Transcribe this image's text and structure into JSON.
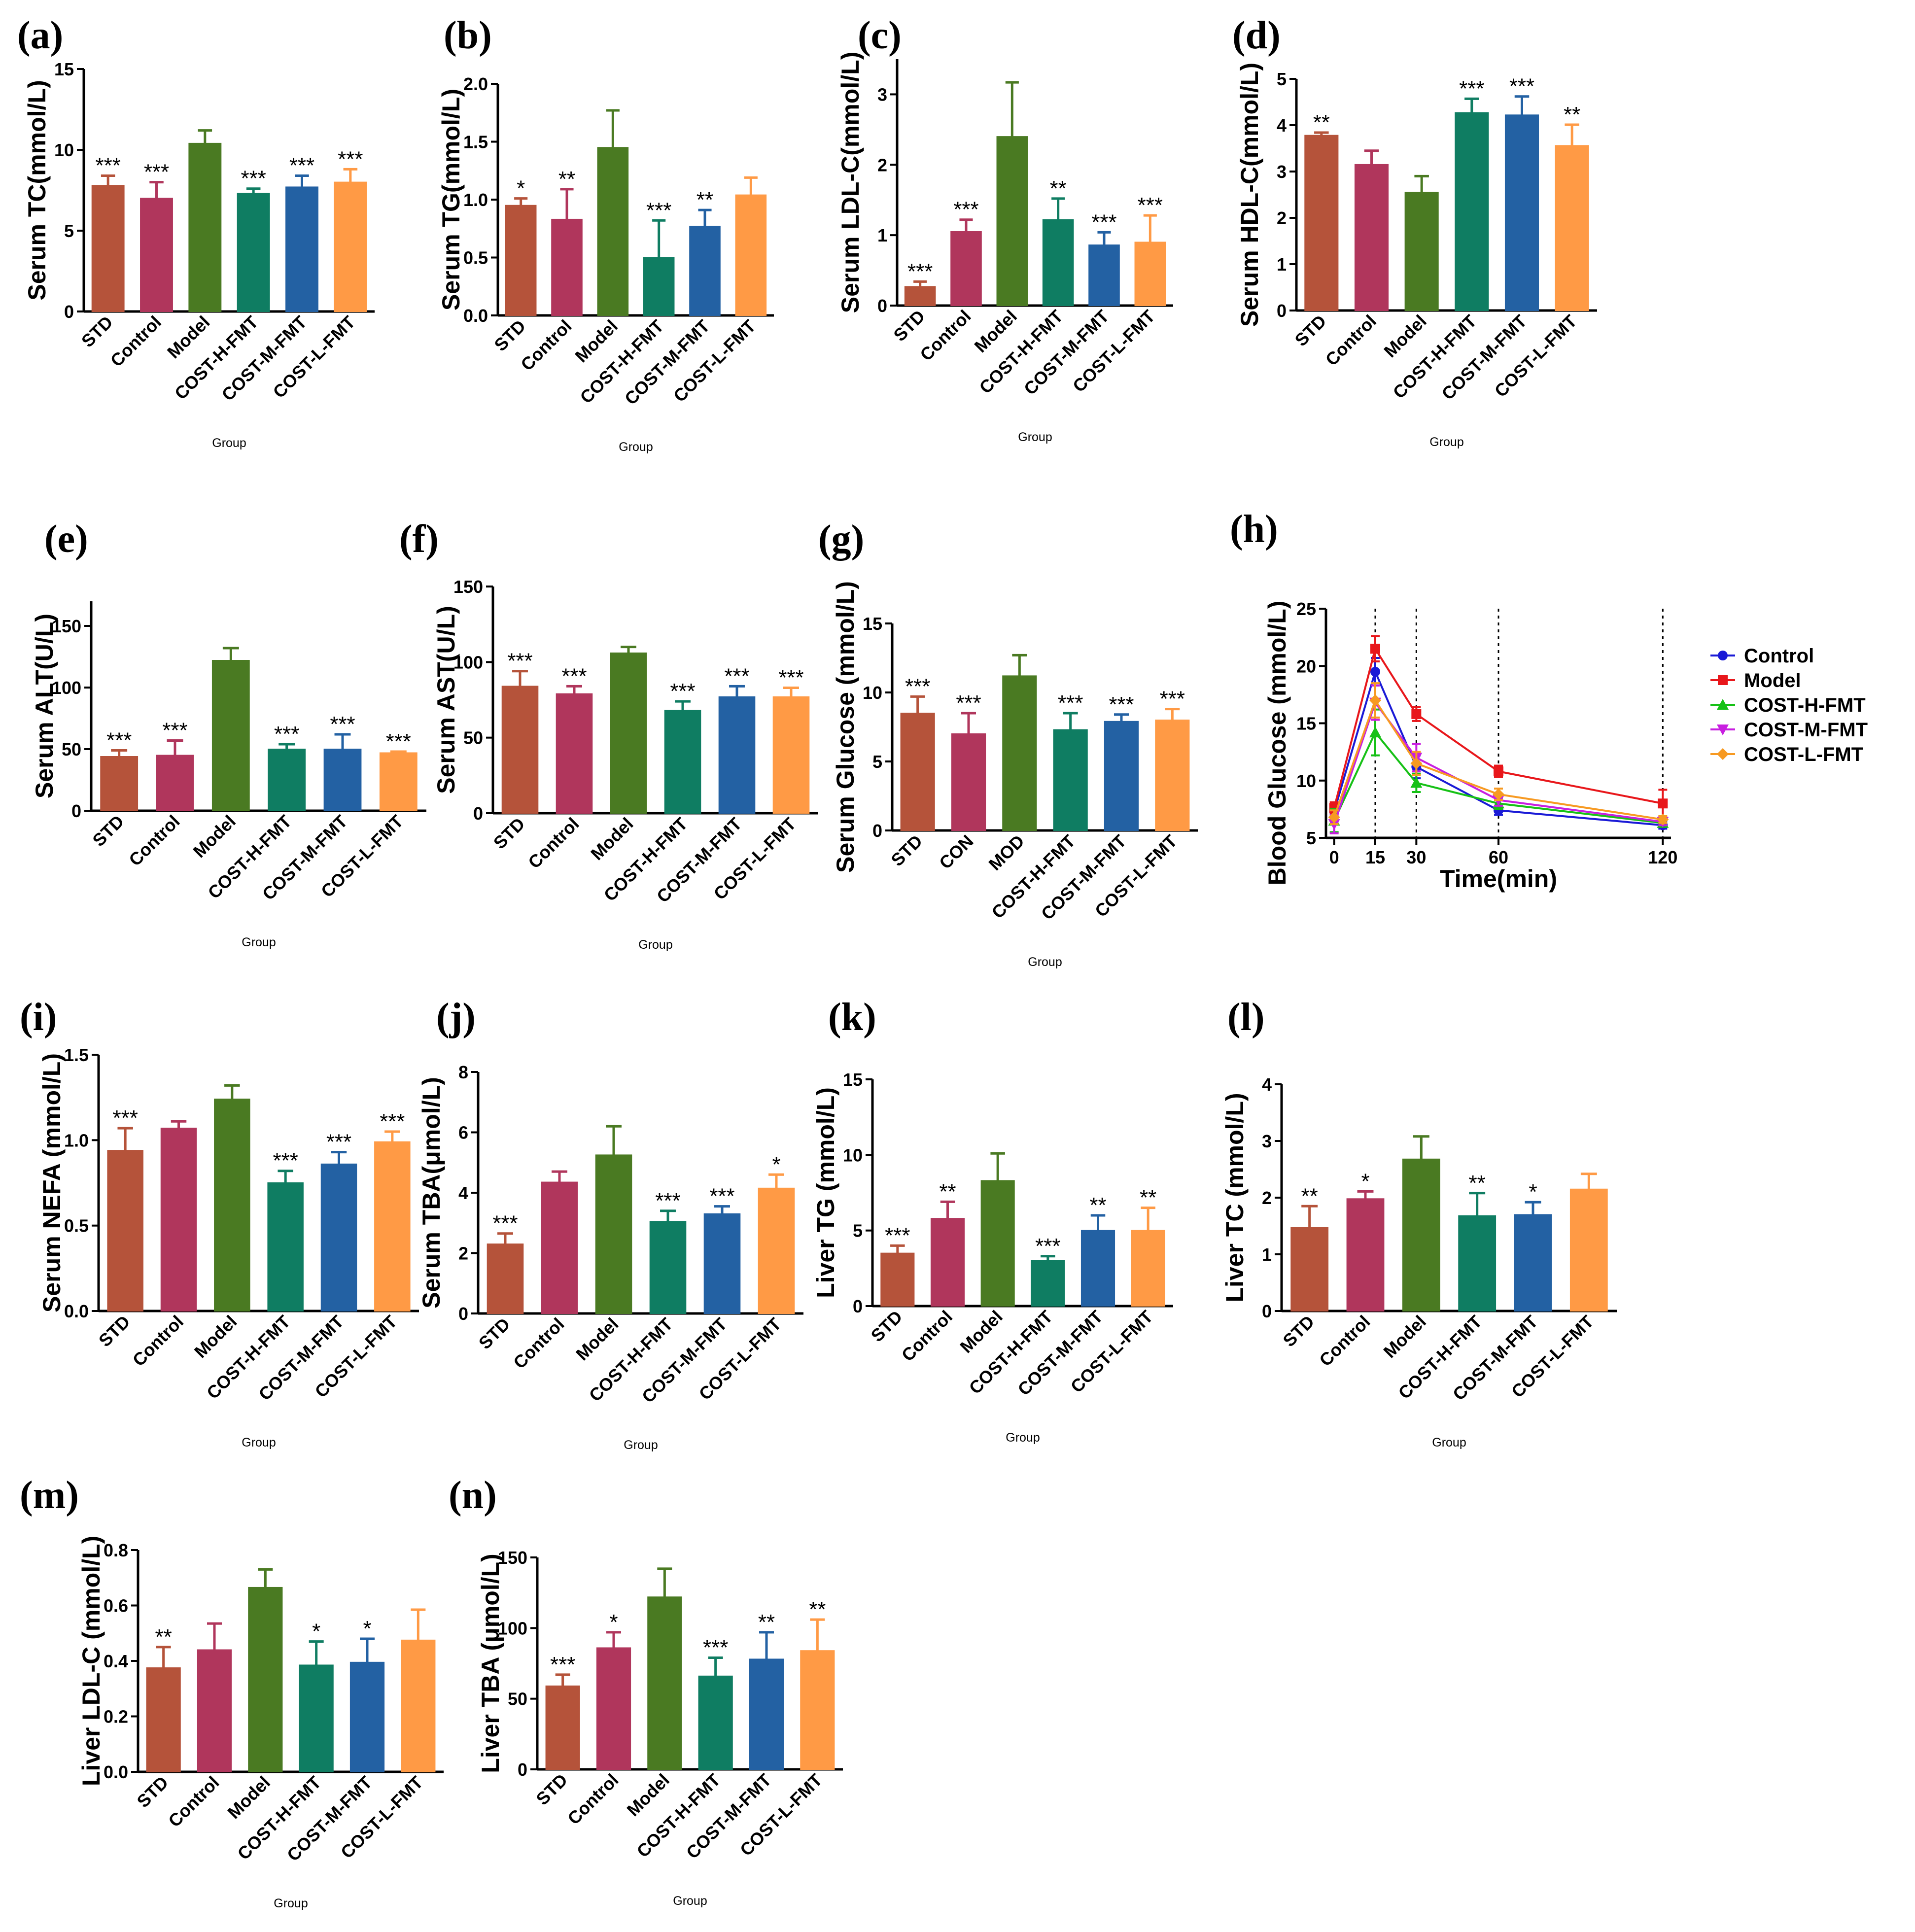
{
  "palette": {
    "STD": "#b5533a",
    "Control": "#b0365c",
    "Model": "#4a7a22",
    "COST-H-FMT": "#0f7d62",
    "COST-M-FMT": "#2361a3",
    "COST-L-FMT": "#ff9a45"
  },
  "line_colors": {
    "Control": "#1a1ad6",
    "Model": "#e8171b",
    "COST-H-FMT": "#16c116",
    "COST-M-FMT": "#c81ee0",
    "COST-L-FMT": "#f79a22"
  },
  "chart_data": [
    {
      "id": "a",
      "letter": "(a)",
      "type": "bar",
      "ylabel": "Serum TC(mmol/L)",
      "xlabel": "Group",
      "categories": [
        "STD",
        "Control",
        "Model",
        "COST-H-FMT",
        "COST-M-FMT",
        "COST-L-FMT"
      ],
      "values": [
        7.8,
        7.0,
        10.4,
        7.3,
        7.7,
        8.0
      ],
      "errors": [
        0.6,
        1.0,
        0.8,
        0.3,
        0.7,
        0.8
      ],
      "significance": [
        "***",
        "***",
        "",
        "***",
        "***",
        "***"
      ],
      "ylim": [
        0,
        15
      ],
      "ticks": [
        0,
        5,
        10,
        15
      ]
    },
    {
      "id": "b",
      "letter": "(b)",
      "type": "bar",
      "ylabel": "Serum TG(mmol/L)",
      "xlabel": "Group",
      "categories": [
        "STD",
        "Control",
        "Model",
        "COST-H-FMT",
        "COST-M-FMT",
        "COST-L-FMT"
      ],
      "values": [
        0.95,
        0.83,
        1.45,
        0.5,
        0.77,
        1.04
      ],
      "errors": [
        0.06,
        0.26,
        0.32,
        0.32,
        0.14,
        0.15
      ],
      "significance": [
        "*",
        "**",
        "",
        "***",
        "**",
        ""
      ],
      "ylim": [
        0,
        2.0
      ],
      "ticks": [
        "0.0",
        "0.5",
        "1.0",
        "1.5",
        "2.0"
      ]
    },
    {
      "id": "c",
      "letter": "(c)",
      "type": "bar",
      "ylabel": "Serum LDL-C(mmol/L)",
      "xlabel": "Group",
      "categories": [
        "STD",
        "Control",
        "Model",
        "COST-H-FMT",
        "COST-M-FMT",
        "COST-L-FMT"
      ],
      "values": [
        0.27,
        1.05,
        2.4,
        1.22,
        0.86,
        0.9
      ],
      "errors": [
        0.07,
        0.17,
        0.77,
        0.3,
        0.18,
        0.38
      ],
      "significance": [
        "***",
        "***",
        "",
        "**",
        "***",
        "***"
      ],
      "ylim": [
        0,
        3.5
      ],
      "ticks": [
        0,
        1,
        2,
        3
      ]
    },
    {
      "id": "d",
      "letter": "(d)",
      "type": "bar",
      "ylabel": "Serum HDL-C(mmol/L)",
      "xlabel": "Group",
      "categories": [
        "STD",
        "Control",
        "Model",
        "COST-H-FMT",
        "COST-M-FMT",
        "COST-L-FMT"
      ],
      "values": [
        3.78,
        3.15,
        2.55,
        4.27,
        4.22,
        3.56
      ],
      "errors": [
        0.06,
        0.3,
        0.35,
        0.3,
        0.4,
        0.45
      ],
      "significance": [
        "**",
        "",
        "",
        "***",
        "***",
        "**"
      ],
      "ylim": [
        0,
        5
      ],
      "ticks": [
        0,
        1,
        2,
        3,
        4,
        5
      ]
    },
    {
      "id": "e",
      "letter": "(e)",
      "type": "bar",
      "ylabel": "Serum ALT(U/L)",
      "xlabel": "Group",
      "categories": [
        "STD",
        "Control",
        "Model",
        "COST-H-FMT",
        "COST-M-FMT",
        "COST-L-FMT"
      ],
      "values": [
        44,
        45,
        122,
        50,
        50,
        47
      ],
      "errors": [
        5,
        12,
        10,
        4,
        12,
        1
      ],
      "significance": [
        "***",
        "***",
        "",
        "***",
        "***",
        "***"
      ],
      "ylim": [
        0,
        170
      ],
      "ticks": [
        0,
        50,
        100,
        150
      ]
    },
    {
      "id": "f",
      "letter": "(f)",
      "type": "bar",
      "ylabel": "Serum AST(U/L)",
      "xlabel": "Group",
      "categories": [
        "STD",
        "Control",
        "Model",
        "COST-H-FMT",
        "COST-M-FMT",
        "COST-L-FMT"
      ],
      "values": [
        84,
        79,
        106,
        68,
        77,
        77
      ],
      "errors": [
        10,
        5,
        4,
        6,
        7,
        6
      ],
      "significance": [
        "***",
        "***",
        "",
        "***",
        "***",
        "***"
      ],
      "ylim": [
        0,
        150
      ],
      "ticks": [
        0,
        50,
        100,
        150
      ]
    },
    {
      "id": "g",
      "letter": "(g)",
      "type": "bar",
      "ylabel": "Serum Glucose (mmol/L)",
      "xlabel": "Group",
      "categories": [
        "STD",
        "CON",
        "MOD",
        "COST-H-FMT",
        "COST-M-FMT",
        "COST-L-FMT"
      ],
      "values": [
        8.5,
        7.0,
        11.2,
        7.3,
        7.9,
        8.0
      ],
      "errors": [
        1.2,
        1.5,
        1.5,
        1.2,
        0.5,
        0.8
      ],
      "significance": [
        "***",
        "***",
        "",
        "***",
        "***",
        "***"
      ],
      "ylim": [
        0,
        15
      ],
      "ticks": [
        0,
        5,
        10,
        15
      ]
    },
    {
      "id": "i",
      "letter": "(i)",
      "type": "bar",
      "ylabel": "Serum NEFA (mmol/L)",
      "xlabel": "Group",
      "categories": [
        "STD",
        "Control",
        "Model",
        "COST-H-FMT",
        "COST-M-FMT",
        "COST-L-FMT"
      ],
      "values": [
        0.94,
        1.07,
        1.24,
        0.75,
        0.86,
        0.99
      ],
      "errors": [
        0.13,
        0.04,
        0.08,
        0.07,
        0.07,
        0.06
      ],
      "significance": [
        "***",
        "",
        "",
        "***",
        "***",
        "***"
      ],
      "ylim": [
        0,
        1.5
      ],
      "ticks": [
        "0.0",
        "0.5",
        "1.0",
        "1.5"
      ]
    },
    {
      "id": "j",
      "letter": "(j)",
      "type": "bar",
      "ylabel": "Serum TBA(μmol/L)",
      "xlabel": "Group",
      "categories": [
        "STD",
        "Control",
        "Model",
        "COST-H-FMT",
        "COST-M-FMT",
        "COST-L-FMT"
      ],
      "values": [
        2.3,
        4.35,
        5.25,
        3.05,
        3.3,
        4.15
      ],
      "errors": [
        0.35,
        0.35,
        0.95,
        0.35,
        0.25,
        0.45
      ],
      "significance": [
        "***",
        "",
        "",
        "***",
        "***",
        "*"
      ],
      "ylim": [
        0,
        8
      ],
      "ticks": [
        0,
        2,
        4,
        6,
        8
      ]
    },
    {
      "id": "k",
      "letter": "(k)",
      "type": "bar",
      "ylabel": "Liver TG (mmol/L)",
      "xlabel": "Group",
      "categories": [
        "STD",
        "Control",
        "Model",
        "COST-H-FMT",
        "COST-M-FMT",
        "COST-L-FMT"
      ],
      "values": [
        3.5,
        5.8,
        8.3,
        3.0,
        5.0,
        5.0
      ],
      "errors": [
        0.5,
        1.1,
        1.8,
        0.3,
        1.0,
        1.5
      ],
      "significance": [
        "***",
        "**",
        "",
        "***",
        "**",
        "**"
      ],
      "ylim": [
        0,
        15
      ],
      "ticks": [
        0,
        5,
        10,
        15
      ]
    },
    {
      "id": "l",
      "letter": "(l)",
      "type": "bar",
      "ylabel": "Liver TC (mmol/L)",
      "xlabel": "Group",
      "categories": [
        "STD",
        "Control",
        "Model",
        "COST-H-FMT",
        "COST-M-FMT",
        "COST-L-FMT"
      ],
      "values": [
        1.47,
        1.98,
        2.68,
        1.68,
        1.7,
        2.15
      ],
      "errors": [
        0.38,
        0.13,
        0.4,
        0.4,
        0.22,
        0.27
      ],
      "significance": [
        "**",
        "*",
        "",
        "**",
        "*",
        ""
      ],
      "ylim": [
        0,
        4
      ],
      "ticks": [
        0,
        1,
        2,
        3,
        4
      ]
    },
    {
      "id": "m",
      "letter": "(m)",
      "type": "bar",
      "ylabel": "Liver LDL-C (mmol/L)",
      "xlabel": "Group",
      "categories": [
        "STD",
        "Control",
        "Model",
        "COST-H-FMT",
        "COST-M-FMT",
        "COST-L-FMT"
      ],
      "values": [
        0.375,
        0.44,
        0.665,
        0.385,
        0.395,
        0.475
      ],
      "errors": [
        0.075,
        0.095,
        0.065,
        0.085,
        0.085,
        0.11
      ],
      "significance": [
        "**",
        "",
        "",
        "*",
        "*",
        ""
      ],
      "ylim": [
        0,
        0.8
      ],
      "ticks": [
        "0.0",
        "0.2",
        "0.4",
        "0.6",
        "0.8"
      ]
    },
    {
      "id": "n",
      "letter": "(n)",
      "type": "bar",
      "ylabel": "Liver TBA (μmol/L)",
      "xlabel": "Group",
      "categories": [
        "STD",
        "Control",
        "Model",
        "COST-H-FMT",
        "COST-M-FMT",
        "COST-L-FMT"
      ],
      "values": [
        59,
        86,
        122,
        66,
        78,
        84
      ],
      "errors": [
        8,
        11,
        20,
        13,
        19,
        22
      ],
      "significance": [
        "***",
        "*",
        "",
        "***",
        "**",
        "**"
      ],
      "ylim": [
        0,
        150
      ],
      "ticks": [
        0,
        50,
        100,
        150
      ]
    },
    {
      "id": "h",
      "letter": "(h)",
      "type": "line",
      "ylabel": "Blood Glucose (mmol/L)",
      "xlabel": "Time(min)",
      "x": [
        0,
        15,
        30,
        60,
        120
      ],
      "xticks": [
        0,
        15,
        30,
        60,
        120
      ],
      "ylim": [
        5,
        25
      ],
      "yticks": [
        5,
        10,
        15,
        20,
        25
      ],
      "series": [
        {
          "name": "Control",
          "marker": "circle",
          "values": [
            7.3,
            19.5,
            11.2,
            7.4,
            6.1
          ],
          "errors": [
            0.5,
            1.2,
            1.0,
            0.4,
            0.3
          ]
        },
        {
          "name": "Model",
          "marker": "square",
          "values": [
            7.6,
            21.5,
            15.8,
            10.8,
            8.0
          ],
          "errors": [
            0.5,
            1.1,
            0.6,
            0.5,
            1.2
          ]
        },
        {
          "name": "COST-H-FMT",
          "marker": "triangle-up",
          "values": [
            6.5,
            14.2,
            9.8,
            8.0,
            6.3
          ],
          "errors": [
            1.0,
            2.0,
            0.8,
            0.5,
            0.3
          ]
        },
        {
          "name": "COST-M-FMT",
          "marker": "triangle-down",
          "values": [
            6.2,
            16.8,
            12.0,
            8.3,
            6.4
          ],
          "errors": [
            0.8,
            1.5,
            1.2,
            0.5,
            0.3
          ]
        },
        {
          "name": "COST-L-FMT",
          "marker": "diamond",
          "values": [
            6.8,
            17.0,
            11.5,
            8.8,
            6.6
          ],
          "errors": [
            0.6,
            1.5,
            1.0,
            0.5,
            0.3
          ]
        }
      ]
    }
  ]
}
